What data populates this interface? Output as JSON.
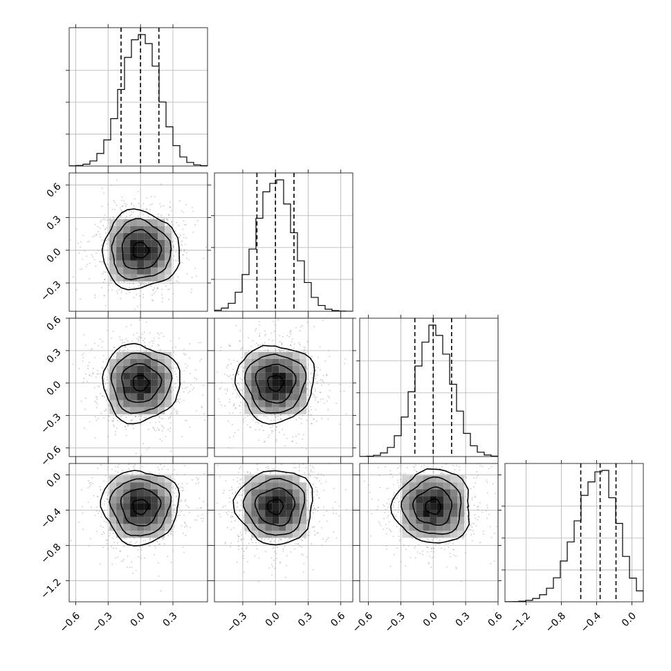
{
  "chart_data": {
    "type": "corner",
    "grid": true,
    "colors": {
      "ink": "#000000",
      "grid": "#b0b0b0",
      "scatter": "#9a9a9a"
    },
    "parameters": [
      {
        "range": [
          -0.66,
          0.62
        ],
        "ticks": [
          -0.6,
          -0.3,
          0.0,
          0.3
        ],
        "tick_labels": [
          "−0.6",
          "−0.3",
          "0.0",
          "0.3"
        ],
        "mean": 0.0,
        "sd": 0.17,
        "quantiles": [
          -0.18,
          0.0,
          0.17
        ]
      },
      {
        "range": [
          -0.56,
          0.71
        ],
        "ticks": [
          -0.3,
          0.0,
          0.3,
          0.6
        ],
        "tick_labels": [
          "−0.3",
          "0.0",
          "0.3",
          "0.6"
        ],
        "mean": 0.0,
        "sd": 0.17,
        "quantiles": [
          -0.17,
          0.0,
          0.17
        ]
      },
      {
        "range": [
          -0.68,
          0.6
        ],
        "ticks": [
          -0.6,
          -0.3,
          0.0,
          0.3,
          0.6
        ],
        "tick_labels": [
          "−0.6",
          "−0.3",
          "0.0",
          "0.3",
          "0.6"
        ],
        "mean": 0.0,
        "sd": 0.17,
        "quantiles": [
          -0.17,
          0.0,
          0.17
        ]
      },
      {
        "range": [
          -1.44,
          0.13
        ],
        "ticks": [
          -1.2,
          -0.8,
          -0.4,
          0.0
        ],
        "tick_labels": [
          "−1.2",
          "−0.8",
          "−0.4",
          "0.0"
        ],
        "mean": -0.36,
        "sd": 0.2,
        "quantiles": [
          -0.58,
          -0.36,
          -0.18
        ]
      }
    ]
  }
}
